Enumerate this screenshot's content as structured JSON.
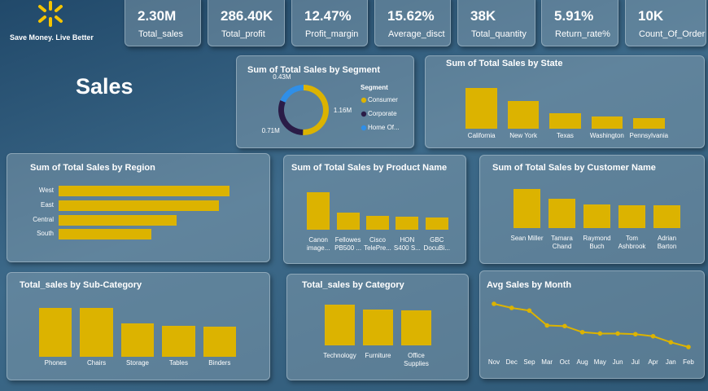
{
  "header": {
    "tagline": "Save Money. Live Better",
    "page_title": "Sales"
  },
  "kpis": [
    {
      "value": "2.30M",
      "label": "Total_sales"
    },
    {
      "value": "286.40K",
      "label": "Total_profit"
    },
    {
      "value": "12.47%",
      "label": "Profit_margin"
    },
    {
      "value": "15.62%",
      "label": "Average_disct"
    },
    {
      "value": "38K",
      "label": "Total_quantity"
    },
    {
      "value": "5.91%",
      "label": "Return_rate%"
    },
    {
      "value": "10K",
      "label": "Count_Of_Order"
    }
  ],
  "chart_data": [
    {
      "type": "donut",
      "title": "Sum of Total Sales by Segment",
      "legend_title": "Segment",
      "categories": [
        "Consumer",
        "Corporate",
        "Home Of..."
      ],
      "values": [
        1160000,
        710000,
        430000
      ],
      "value_labels": [
        "1.16M",
        "0.71M",
        "0.43M"
      ],
      "colors": [
        "#dcb300",
        "#2a1c47",
        "#2f8fe8"
      ]
    },
    {
      "type": "bar",
      "title": "Sum of Total Sales by State",
      "categories": [
        "California",
        "New York",
        "Texas",
        "Washington",
        "Pennsylvania"
      ],
      "values": [
        457000,
        311000,
        170000,
        139000,
        117000
      ],
      "color": "#dcb300"
    },
    {
      "type": "hbar",
      "title": "Sum of Total Sales by Region",
      "categories": [
        "West",
        "East",
        "Central",
        "South"
      ],
      "values": [
        725000,
        679000,
        501000,
        392000
      ],
      "color": "#dcb300"
    },
    {
      "type": "bar",
      "title": "Sum of Total Sales by Product Name",
      "categories": [
        "Canon image...",
        "Fellowes PB500 ...",
        "Cisco TelePre...",
        "HON S400 S...",
        "GBC DocuBi..."
      ],
      "values": [
        61600,
        27500,
        22600,
        21900,
        19800
      ],
      "color": "#dcb300"
    },
    {
      "type": "bar",
      "title": "Sum of Total Sales by Customer Name",
      "categories": [
        "Sean Miller",
        "Tamara Chand",
        "Raymond Buch",
        "Tom Ashbrook",
        "Adrian Barton"
      ],
      "values": [
        25000,
        19000,
        15100,
        14600,
        14500
      ],
      "color": "#dcb300"
    },
    {
      "type": "bar",
      "title": "Total_sales by Sub-Category",
      "categories": [
        "Phones",
        "Chairs",
        "Storage",
        "Tables",
        "Binders"
      ],
      "values": [
        330000,
        328000,
        224000,
        207000,
        204000
      ],
      "color": "#dcb300"
    },
    {
      "type": "bar",
      "title": "Total_sales by Category",
      "categories": [
        "Technology",
        "Furniture",
        "Office Supplies"
      ],
      "values": [
        836000,
        742000,
        719000
      ],
      "color": "#dcb300"
    },
    {
      "type": "line",
      "title": "Avg Sales by Month",
      "categories": [
        "Nov",
        "Dec",
        "Sep",
        "Mar",
        "Oct",
        "Aug",
        "May",
        "Jun",
        "Jul",
        "Apr",
        "Jan",
        "Feb"
      ],
      "values": [
        260,
        254,
        250,
        228,
        227,
        218,
        216,
        216,
        215,
        212,
        203,
        196
      ],
      "color": "#dcb300"
    }
  ]
}
